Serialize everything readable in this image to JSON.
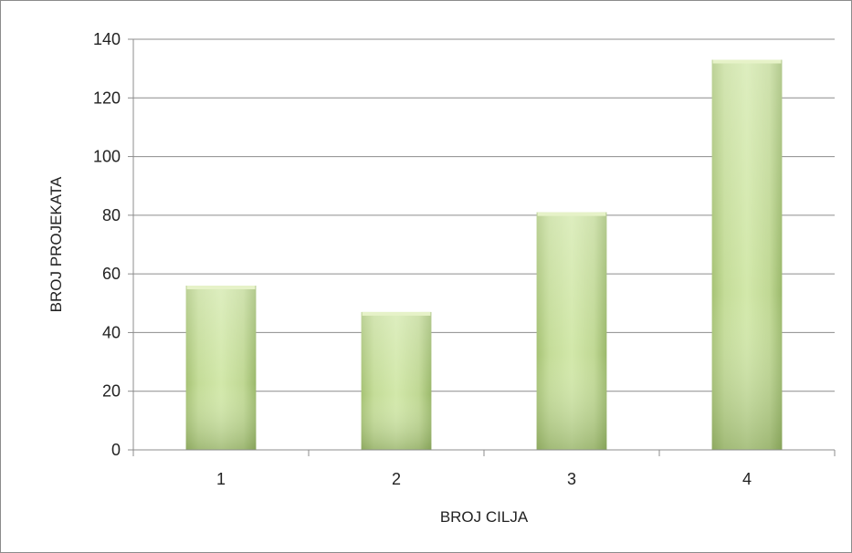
{
  "chart_data": {
    "type": "bar",
    "title": "",
    "xlabel": "BROJ CILJA",
    "ylabel": "BROJ PROJEKATA",
    "categories": [
      "1",
      "2",
      "3",
      "4"
    ],
    "values": [
      56,
      47,
      81,
      133
    ],
    "ylim": [
      0,
      140
    ],
    "yticks": [
      0,
      20,
      40,
      60,
      80,
      100,
      120,
      140
    ],
    "grid": true,
    "legend": "none",
    "colors": {
      "bar_light": "#d3e8a6",
      "bar_mid": "#b2cf82",
      "bar_dark": "#8fac5f",
      "grid": "#8c8c8c",
      "axis": "#8c8c8c",
      "frame": "#8c8c8c"
    }
  }
}
